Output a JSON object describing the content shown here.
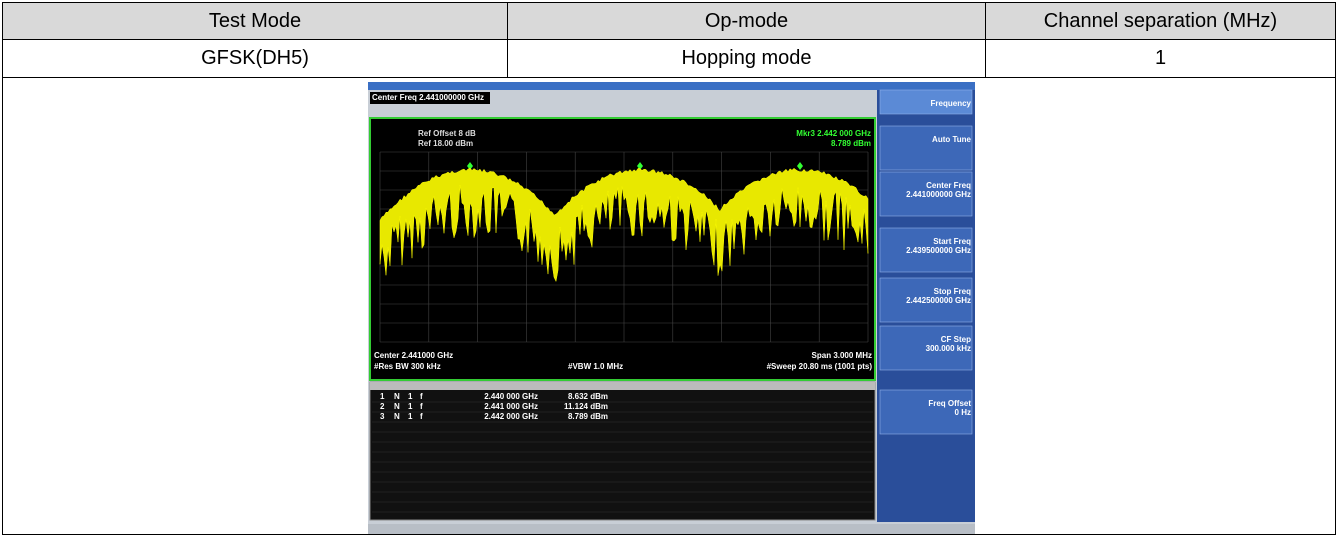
{
  "table": {
    "header": [
      "Test Mode",
      "Op-mode",
      "Channel separation (MHz)"
    ],
    "rows": [
      [
        "GFSK(DH5)",
        "Hopping mode",
        "1"
      ]
    ]
  },
  "screenshot": {
    "center_freq": "Center Freq 2.441000000 GHz",
    "ref_offset": "Ref Offset 8 dB",
    "ref_level": "Ref 18.00 dBm",
    "marker_freq": "Mkr3 2.442 000 GHz",
    "marker_level": "8.789 dBm",
    "center": "Center 2.441000 GHz",
    "rbw": "#Res BW 300 kHz",
    "vbw": "#VBW 1.0 MHz",
    "span": "Span 3.000 MHz",
    "sweep": "#Sweep 20.80 ms (1001 pts)",
    "softkeys": [
      {
        "label": "Frequency"
      },
      {
        "label": "Auto Tune"
      },
      {
        "label": "Center Freq",
        "value": "2.441000000 GHz"
      },
      {
        "label": "Start Freq",
        "value": "2.439500000 GHz"
      },
      {
        "label": "Stop Freq",
        "value": "2.442500000 GHz"
      },
      {
        "label": "CF Step",
        "value": "300.000 kHz"
      },
      {
        "label": "Freq Offset",
        "value": "0 Hz"
      }
    ],
    "markers": [
      [
        "1",
        "N",
        "1",
        "f",
        "2.440 000 GHz",
        "8.632 dBm"
      ],
      [
        "2",
        "N",
        "1",
        "f",
        "2.441 000 GHz",
        "11.124 dBm"
      ],
      [
        "3",
        "N",
        "1",
        "f",
        "2.442 000 GHz",
        "8.789 dBm"
      ]
    ]
  }
}
